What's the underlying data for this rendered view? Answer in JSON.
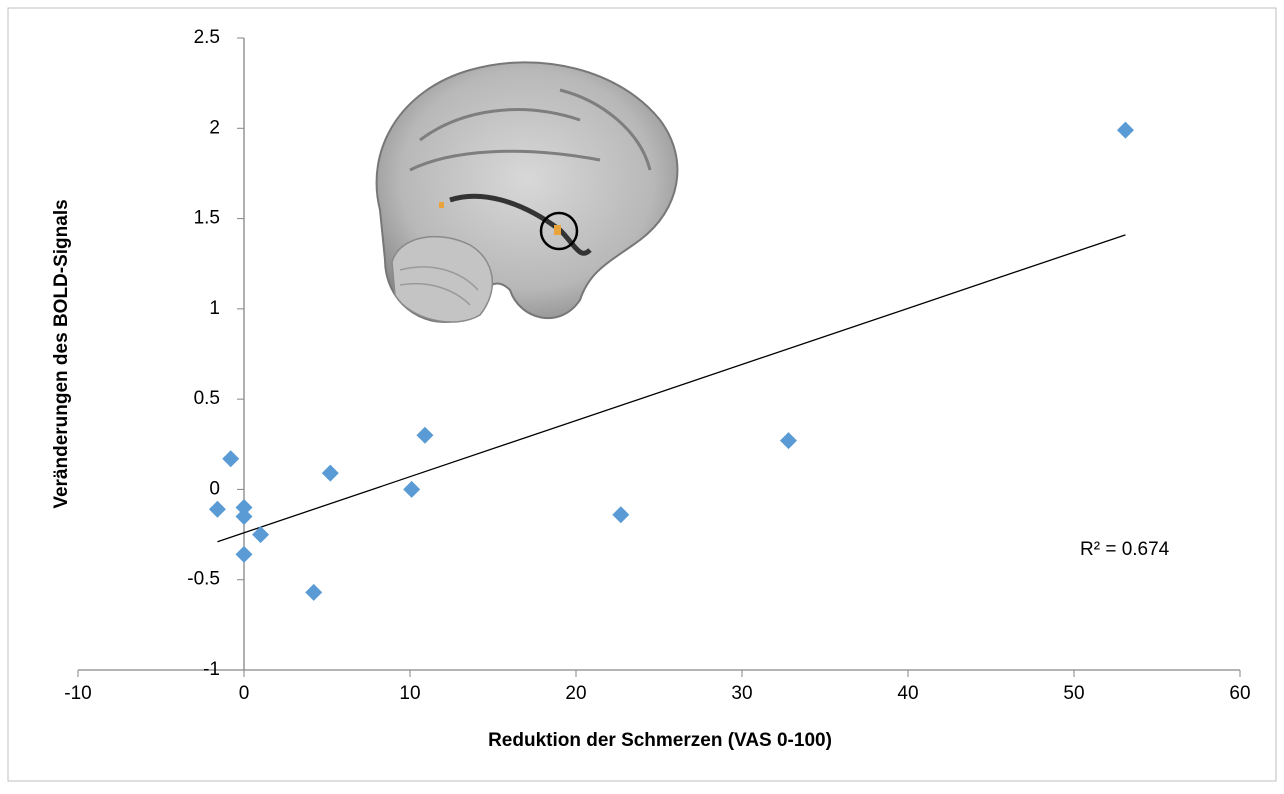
{
  "chart_data": {
    "type": "scatter",
    "x_label": "Reduktion der Schmerzen (VAS 0-100)",
    "y_label": "Veränderungen des BOLD-Signals",
    "x": [
      53.1,
      32.8,
      22.7,
      10.9,
      10.1,
      5.2,
      4.2,
      1.0,
      0,
      0,
      0,
      -0.8,
      -1.6
    ],
    "values": [
      1.99,
      0.27,
      -0.14,
      0.3,
      0.0,
      0.09,
      -0.57,
      -0.25,
      -0.1,
      -0.15,
      -0.36,
      0.17,
      -0.11
    ],
    "color": "#5b9bd5",
    "trendline": {
      "x": [
        -1.6,
        53.1
      ],
      "y": [
        -0.29,
        1.41
      ]
    },
    "annotation": "R² = 0.674",
    "xlim": [
      -10,
      60
    ],
    "xticks": [
      -10,
      0,
      10,
      20,
      30,
      40,
      50,
      60
    ],
    "ylim": [
      -1,
      2.5
    ],
    "yticks": [
      -1,
      -0.5,
      0,
      0.5,
      1,
      1.5,
      2,
      2.5
    ],
    "grid": false
  }
}
